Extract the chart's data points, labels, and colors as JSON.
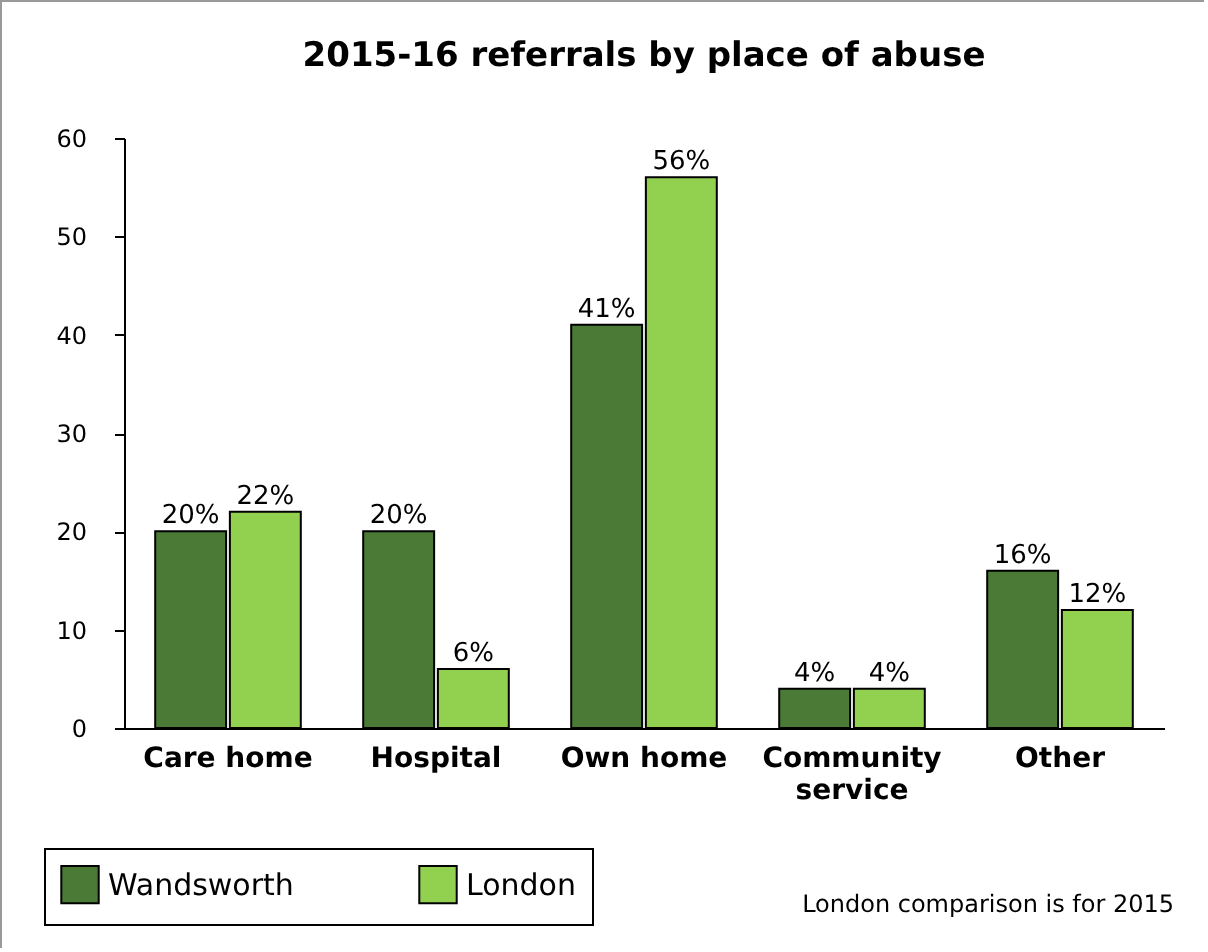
{
  "chart_data": {
    "type": "bar",
    "title": "2015-16 referrals by place of abuse",
    "categories": [
      "Care home",
      "Hospital",
      "Own home",
      "Community service",
      "Other"
    ],
    "series": [
      {
        "name": "Wandsworth",
        "color": "#4a7a35",
        "values": [
          20,
          20,
          41,
          4,
          16
        ],
        "value_labels": [
          "20%",
          "20%",
          "41%",
          "4%",
          "16%"
        ]
      },
      {
        "name": "London",
        "color": "#92d050",
        "values": [
          22,
          6,
          56,
          4,
          12
        ],
        "value_labels": [
          "22%",
          "6%",
          "56%",
          "4%",
          "12%"
        ]
      }
    ],
    "ylim": [
      0,
      60
    ],
    "yticks": [
      0,
      10,
      20,
      30,
      40,
      50,
      60
    ],
    "grid": false,
    "legend": "bottom left",
    "annotations": [
      "London comparison is for 2015"
    ]
  }
}
